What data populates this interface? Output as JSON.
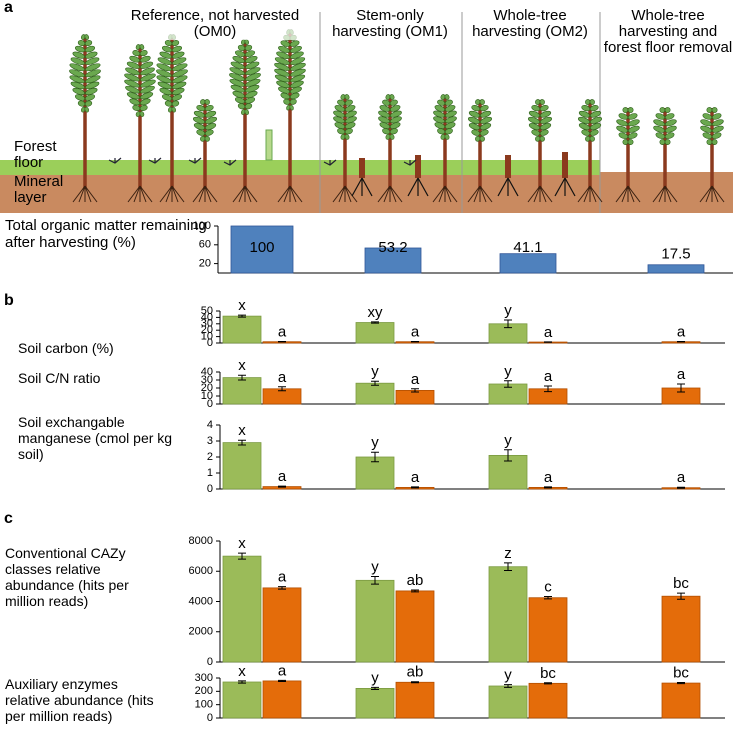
{
  "panel_labels": [
    "a",
    "b",
    "c"
  ],
  "illustration": {
    "columns": [
      "Reference, not harvested (OM0)",
      "Stem-only harvesting (OM1)",
      "Whole-tree harvesting (OM2)",
      "Whole-tree harvesting and forest floor removal"
    ],
    "layers": [
      "Forest floor",
      "Mineral layer"
    ]
  },
  "chart_data": [
    {
      "type": "bar",
      "ylabel": "Total organic matter remaining after harvesting (%)",
      "categories": [
        null,
        null,
        null,
        null
      ],
      "values": [
        100,
        53.2,
        41.1,
        17.5
      ],
      "color": "#4f81bd",
      "ylim": [
        0,
        100
      ],
      "yticks": [
        20,
        60,
        100
      ]
    },
    {
      "type": "bar",
      "ylabel": "Soil carbon (%)",
      "categories": [
        null,
        null,
        null,
        null
      ],
      "series": [
        {
          "color": "#9bbb59",
          "values": [
            42,
            32,
            30,
            null
          ],
          "errors": [
            1.5,
            1,
            6,
            null
          ],
          "letters": [
            "x",
            "xy",
            "y",
            null
          ]
        },
        {
          "color": "#e46c0a",
          "values": [
            2,
            2,
            1.5,
            2
          ],
          "errors": [
            0.3,
            0.3,
            0.3,
            0.3
          ],
          "letters": [
            "a",
            "a",
            "a",
            "a"
          ]
        }
      ],
      "ylim": [
        0,
        50
      ],
      "yticks": [
        0,
        10,
        20,
        30,
        40,
        50
      ]
    },
    {
      "type": "bar",
      "ylabel": "Soil C/N ratio",
      "categories": [
        null,
        null,
        null,
        null
      ],
      "series": [
        {
          "color": "#9bbb59",
          "values": [
            33,
            26,
            25,
            null
          ],
          "errors": [
            3,
            2.5,
            4,
            null
          ],
          "letters": [
            "x",
            "y",
            "y",
            null
          ]
        },
        {
          "color": "#e46c0a",
          "values": [
            19,
            17,
            19,
            20
          ],
          "errors": [
            2.5,
            2,
            3.5,
            5
          ],
          "letters": [
            "a",
            "a",
            "a",
            "a"
          ]
        }
      ],
      "ylim": [
        0,
        40
      ],
      "yticks": [
        0,
        10,
        20,
        30,
        40
      ]
    },
    {
      "type": "bar",
      "ylabel": "Soil exchangable manganese (cmol per kg soil)",
      "categories": [
        null,
        null,
        null,
        null
      ],
      "series": [
        {
          "color": "#9bbb59",
          "values": [
            2.9,
            2.0,
            2.1,
            null
          ],
          "errors": [
            0.15,
            0.3,
            0.35,
            null
          ],
          "letters": [
            "x",
            "y",
            "y",
            null
          ]
        },
        {
          "color": "#e46c0a",
          "values": [
            0.15,
            0.1,
            0.1,
            0.08
          ],
          "errors": [
            0.03,
            0.03,
            0.03,
            0.03
          ],
          "letters": [
            "a",
            "a",
            "a",
            "a"
          ]
        }
      ],
      "ylim": [
        0,
        4
      ],
      "yticks": [
        0,
        1,
        2,
        3,
        4
      ]
    },
    {
      "type": "bar",
      "ylabel": "Conventional CAZy classes relative abundance (hits per million reads)",
      "categories": [
        null,
        null,
        null,
        null
      ],
      "series": [
        {
          "color": "#9bbb59",
          "values": [
            7000,
            5400,
            6300,
            null
          ],
          "errors": [
            200,
            250,
            250,
            null
          ],
          "letters": [
            "x",
            "y",
            "z",
            null
          ]
        },
        {
          "color": "#e46c0a",
          "values": [
            4900,
            4700,
            4250,
            4350
          ],
          "errors": [
            80,
            60,
            80,
            200
          ],
          "letters": [
            "a",
            "ab",
            "c",
            "bc"
          ]
        }
      ],
      "ylim": [
        0,
        8000
      ],
      "yticks": [
        0,
        2000,
        4000,
        6000,
        8000
      ]
    },
    {
      "type": "bar",
      "ylabel": "Auxiliary enzymes relative abundance (hits per million reads)",
      "categories": [
        null,
        null,
        null,
        null
      ],
      "series": [
        {
          "color": "#9bbb59",
          "values": [
            270,
            222,
            240,
            null
          ],
          "errors": [
            8,
            8,
            10,
            null
          ],
          "letters": [
            "x",
            "y",
            "y",
            null
          ]
        },
        {
          "color": "#e46c0a",
          "values": [
            278,
            268,
            260,
            262
          ],
          "errors": [
            4,
            4,
            4,
            4
          ],
          "letters": [
            "a",
            "ab",
            "bc",
            "bc"
          ]
        }
      ],
      "ylim": [
        0,
        300
      ],
      "yticks": [
        0,
        100,
        200,
        300
      ]
    }
  ]
}
